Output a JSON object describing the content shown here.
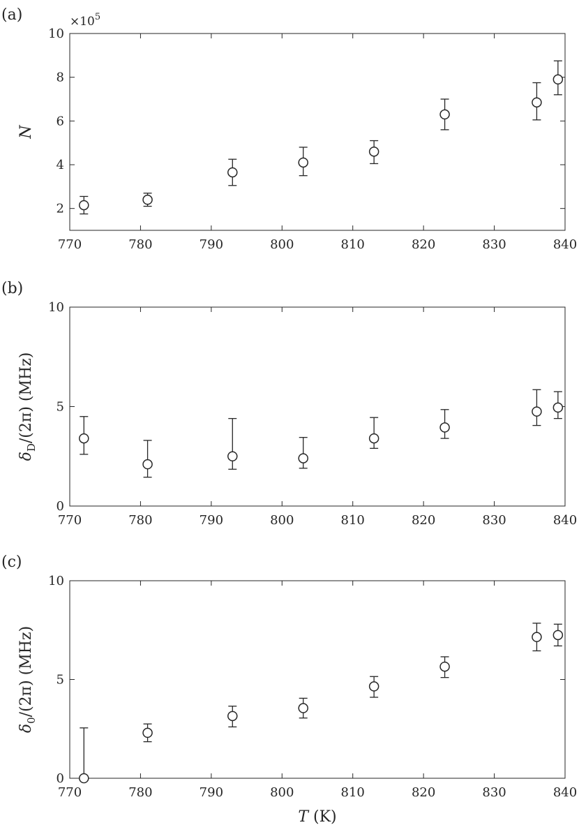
{
  "chart_data": [
    {
      "type": "scatter",
      "panel_label": "(a)",
      "ylabel": "N",
      "xlabel": "",
      "y_multiplier": "×10",
      "y_multiplier_exponent": "5",
      "xlim": [
        770,
        840
      ],
      "ylim": [
        1,
        10
      ],
      "xticks": [
        770,
        780,
        790,
        800,
        810,
        820,
        830,
        840
      ],
      "yticks": [
        2,
        4,
        6,
        8,
        10
      ],
      "grid": false,
      "marker": "open-circle",
      "errorbars": true,
      "points": [
        {
          "x": 772,
          "y": 2.15,
          "y_low": 1.75,
          "y_high": 2.55
        },
        {
          "x": 781,
          "y": 2.4,
          "y_low": 2.1,
          "y_high": 2.7
        },
        {
          "x": 793,
          "y": 3.65,
          "y_low": 3.05,
          "y_high": 4.25
        },
        {
          "x": 803,
          "y": 4.1,
          "y_low": 3.5,
          "y_high": 4.8
        },
        {
          "x": 813,
          "y": 4.6,
          "y_low": 4.05,
          "y_high": 5.1
        },
        {
          "x": 823,
          "y": 6.3,
          "y_low": 5.6,
          "y_high": 7.0
        },
        {
          "x": 836,
          "y": 6.85,
          "y_low": 6.05,
          "y_high": 7.75
        },
        {
          "x": 839,
          "y": 7.9,
          "y_low": 7.2,
          "y_high": 8.75
        }
      ]
    },
    {
      "type": "scatter",
      "panel_label": "(b)",
      "ylabel": "δ_D/(2π) (MHz)",
      "xlabel": "",
      "xlim": [
        770,
        840
      ],
      "ylim": [
        0,
        10
      ],
      "xticks": [
        770,
        780,
        790,
        800,
        810,
        820,
        830,
        840
      ],
      "yticks": [
        0,
        5,
        10
      ],
      "grid": false,
      "marker": "open-circle",
      "errorbars": true,
      "points": [
        {
          "x": 772,
          "y": 3.4,
          "y_low": 2.6,
          "y_high": 4.5
        },
        {
          "x": 781,
          "y": 2.1,
          "y_low": 1.45,
          "y_high": 3.3
        },
        {
          "x": 793,
          "y": 2.5,
          "y_low": 1.85,
          "y_high": 4.4
        },
        {
          "x": 803,
          "y": 2.4,
          "y_low": 1.9,
          "y_high": 3.45
        },
        {
          "x": 813,
          "y": 3.4,
          "y_low": 2.9,
          "y_high": 4.45
        },
        {
          "x": 823,
          "y": 3.95,
          "y_low": 3.4,
          "y_high": 4.85
        },
        {
          "x": 836,
          "y": 4.75,
          "y_low": 4.05,
          "y_high": 5.85
        },
        {
          "x": 839,
          "y": 4.95,
          "y_low": 4.4,
          "y_high": 5.75
        }
      ]
    },
    {
      "type": "scatter",
      "panel_label": "(c)",
      "ylabel": "δ_0/(2π) (MHz)",
      "xlabel": "T (K)",
      "xlim": [
        770,
        840
      ],
      "ylim": [
        0,
        10
      ],
      "xticks": [
        770,
        780,
        790,
        800,
        810,
        820,
        830,
        840
      ],
      "yticks": [
        0,
        5,
        10
      ],
      "grid": false,
      "marker": "open-circle",
      "errorbars": true,
      "points": [
        {
          "x": 772,
          "y": 0.0,
          "y_low": 0.0,
          "y_high": 2.55
        },
        {
          "x": 781,
          "y": 2.3,
          "y_low": 1.85,
          "y_high": 2.75
        },
        {
          "x": 793,
          "y": 3.15,
          "y_low": 2.6,
          "y_high": 3.65
        },
        {
          "x": 803,
          "y": 3.55,
          "y_low": 3.05,
          "y_high": 4.05
        },
        {
          "x": 813,
          "y": 4.65,
          "y_low": 4.1,
          "y_high": 5.15
        },
        {
          "x": 823,
          "y": 5.65,
          "y_low": 5.1,
          "y_high": 6.15
        },
        {
          "x": 836,
          "y": 7.15,
          "y_low": 6.45,
          "y_high": 7.85
        },
        {
          "x": 839,
          "y": 7.25,
          "y_low": 6.7,
          "y_high": 7.8
        }
      ]
    }
  ]
}
